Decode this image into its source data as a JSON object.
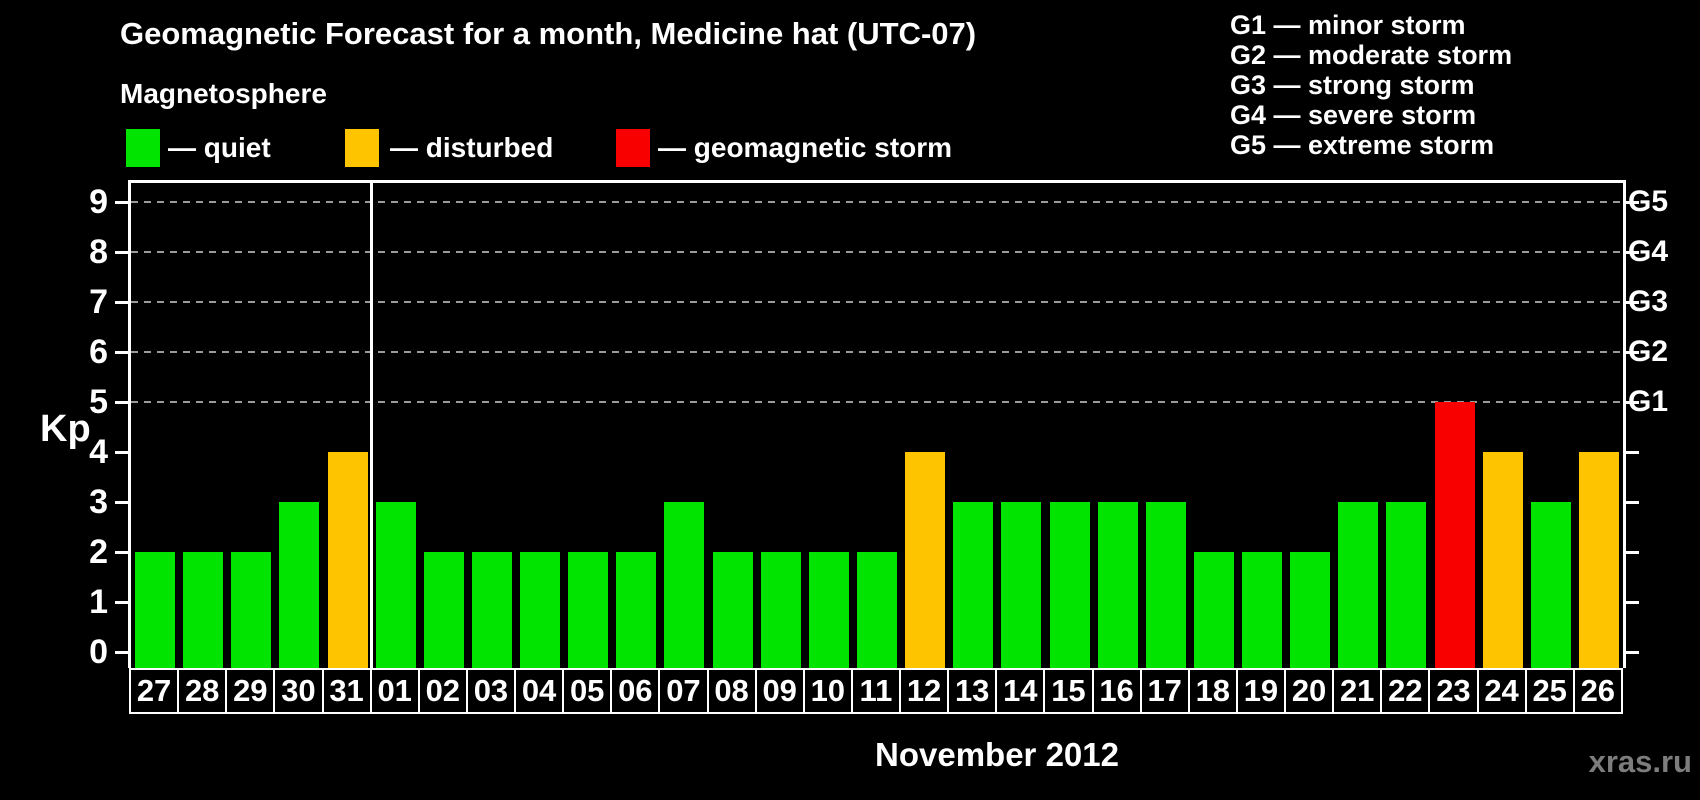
{
  "title": "Geomagnetic Forecast for a month, Medicine hat (UTC-07)",
  "magnetosphere_label": "Magnetosphere",
  "legend": {
    "items": [
      {
        "key": "quiet",
        "label": "— quiet",
        "color": "#00E400"
      },
      {
        "key": "disturbed",
        "label": "— disturbed",
        "color": "#FFC400"
      },
      {
        "key": "storm",
        "label": "— geomagnetic storm",
        "color": "#F80000"
      }
    ]
  },
  "g_legend": {
    "items": [
      "G1 — minor storm",
      "G2 — moderate storm",
      "G3 — strong storm",
      "G4 — severe storm",
      "G5 — extreme storm"
    ]
  },
  "colors": {
    "quiet": "#00E400",
    "disturbed": "#FFC400",
    "storm": "#F80000",
    "grid": "#9b9b9b",
    "axis": "#ffffff",
    "watermark": "#7d7d7d"
  },
  "chart_data": {
    "type": "bar",
    "title": "Geomagnetic Forecast for a month, Medicine hat (UTC-07)",
    "ylabel": "Kp",
    "ylim": [
      0,
      9
    ],
    "yticks": [
      0,
      1,
      2,
      3,
      4,
      5,
      6,
      7,
      8,
      9
    ],
    "grid_values": [
      5,
      6,
      7,
      8,
      9
    ],
    "grid_on": true,
    "legend_position": "top",
    "categories": [
      "27",
      "28",
      "29",
      "30",
      "31",
      "01",
      "02",
      "03",
      "04",
      "05",
      "06",
      "07",
      "08",
      "09",
      "10",
      "11",
      "12",
      "13",
      "14",
      "15",
      "16",
      "17",
      "18",
      "19",
      "20",
      "21",
      "22",
      "23",
      "24",
      "25",
      "26"
    ],
    "values": [
      2,
      2,
      2,
      3,
      4,
      3,
      2,
      2,
      2,
      2,
      2,
      3,
      2,
      2,
      2,
      2,
      4,
      3,
      3,
      3,
      3,
      3,
      2,
      2,
      2,
      3,
      3,
      5,
      4,
      3,
      4
    ],
    "statuses": [
      "quiet",
      "quiet",
      "quiet",
      "quiet",
      "disturbed",
      "quiet",
      "quiet",
      "quiet",
      "quiet",
      "quiet",
      "quiet",
      "quiet",
      "quiet",
      "quiet",
      "quiet",
      "quiet",
      "disturbed",
      "quiet",
      "quiet",
      "quiet",
      "quiet",
      "quiet",
      "quiet",
      "quiet",
      "quiet",
      "quiet",
      "quiet",
      "storm",
      "disturbed",
      "quiet",
      "disturbed"
    ],
    "month_separator_after_category": "31",
    "month_label": "November 2012",
    "right_axis_labels": [
      {
        "label": "G1",
        "value": 5
      },
      {
        "label": "G2",
        "value": 6
      },
      {
        "label": "G3",
        "value": 7
      },
      {
        "label": "G4",
        "value": 8
      },
      {
        "label": "G5",
        "value": 9
      }
    ]
  },
  "watermark": "xras.ru"
}
